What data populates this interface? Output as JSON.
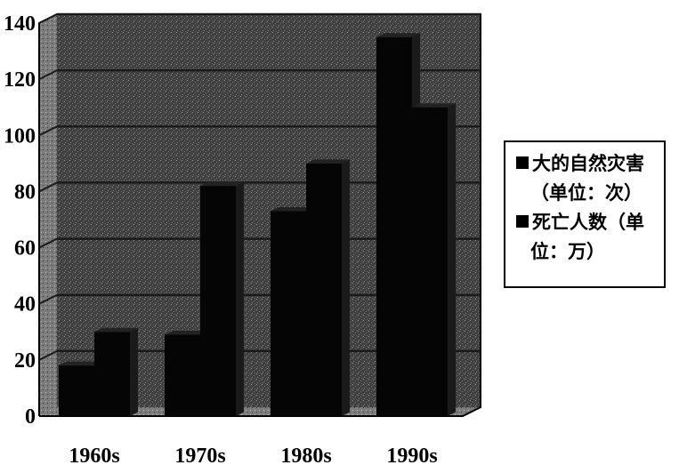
{
  "chart_data": {
    "type": "bar",
    "categories": [
      "1960s",
      "1970s",
      "1980s",
      "1990s"
    ],
    "series": [
      {
        "name": "大的自然灾害（单位：次）",
        "values": [
          18,
          29,
          73,
          135
        ]
      },
      {
        "name": "死亡人数（单位：万）",
        "values": [
          30,
          82,
          90,
          110
        ]
      }
    ],
    "yticks": [
      "0",
      "20",
      "40",
      "60",
      "80",
      "100",
      "120",
      "140"
    ],
    "ylim": [
      0,
      140
    ],
    "grid": true,
    "legend_position": "right"
  },
  "legend": {
    "items": [
      {
        "line1": "大的自然灾害",
        "line2": "（单位：次）"
      },
      {
        "line1": "死亡人数（单",
        "line2": "位：万）"
      }
    ]
  },
  "colors": {
    "bar": "#050505",
    "plot_bg": "#4a4a4a",
    "grid": "#1a1a1a",
    "floor": "#8a8a8a"
  }
}
